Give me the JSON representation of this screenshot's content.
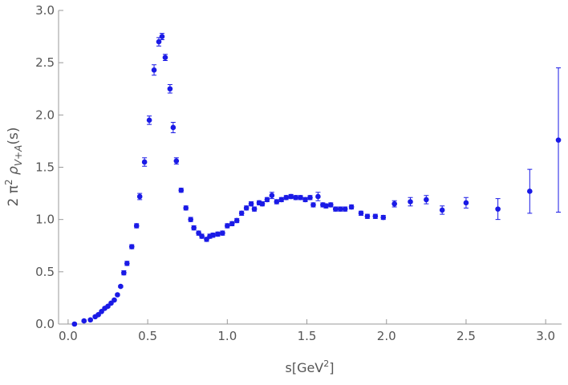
{
  "chart_data": {
    "type": "scatter",
    "xlabel": [
      "s[GeV",
      "2",
      "]"
    ],
    "ylabel": [
      "2 π",
      "2",
      " ρ",
      "V+A",
      "(s)"
    ],
    "xlim": [
      -0.06,
      3.1
    ],
    "ylim": [
      0,
      3.0
    ],
    "xticks": [
      {
        "value": 0,
        "label": "0.0"
      },
      0.5,
      {
        "value": 1,
        "label": "1.0"
      },
      1.5,
      {
        "value": 2,
        "label": "2.0"
      },
      2.5,
      {
        "value": 3,
        "label": "3.0"
      }
    ],
    "yticks": [
      {
        "value": 0,
        "label": "0.0"
      },
      0.5,
      {
        "value": 1,
        "label": "1.0"
      },
      1.5,
      {
        "value": 2,
        "label": "2.0"
      },
      2.5,
      {
        "value": 3,
        "label": "3.0"
      }
    ],
    "color": "#1a1ae6",
    "x": [
      0.04,
      0.1,
      0.14,
      0.17,
      0.19,
      0.21,
      0.23,
      0.25,
      0.27,
      0.29,
      0.31,
      0.33,
      0.35,
      0.37,
      0.4,
      0.43,
      0.45,
      0.48,
      0.51,
      0.54,
      0.57,
      0.59,
      0.61,
      0.64,
      0.66,
      0.68,
      0.71,
      0.74,
      0.77,
      0.79,
      0.82,
      0.84,
      0.87,
      0.89,
      0.91,
      0.94,
      0.97,
      1.0,
      1.03,
      1.06,
      1.09,
      1.12,
      1.15,
      1.17,
      1.2,
      1.22,
      1.25,
      1.28,
      1.31,
      1.34,
      1.37,
      1.4,
      1.43,
      1.46,
      1.49,
      1.52,
      1.54,
      1.57,
      1.6,
      1.62,
      1.65,
      1.68,
      1.71,
      1.74,
      1.78,
      1.84,
      1.88,
      1.93,
      1.98,
      2.05,
      2.15,
      2.25,
      2.35,
      2.5,
      2.7,
      2.9,
      3.08
    ],
    "values": [
      0.0,
      0.03,
      0.04,
      0.07,
      0.09,
      0.12,
      0.15,
      0.17,
      0.2,
      0.23,
      0.28,
      0.36,
      0.49,
      0.58,
      0.74,
      0.94,
      1.22,
      1.55,
      1.95,
      2.43,
      2.7,
      2.75,
      2.55,
      2.25,
      1.88,
      1.56,
      1.28,
      1.11,
      1.0,
      0.92,
      0.87,
      0.84,
      0.81,
      0.84,
      0.85,
      0.86,
      0.87,
      0.94,
      0.96,
      0.99,
      1.06,
      1.11,
      1.15,
      1.1,
      1.16,
      1.15,
      1.19,
      1.23,
      1.17,
      1.19,
      1.21,
      1.22,
      1.21,
      1.21,
      1.19,
      1.21,
      1.14,
      1.22,
      1.14,
      1.13,
      1.14,
      1.1,
      1.1,
      1.1,
      1.12,
      1.06,
      1.03,
      1.03,
      1.02,
      1.15,
      1.17,
      1.19,
      1.09,
      1.16,
      1.1,
      1.27,
      1.76
    ],
    "errors": [
      0.01,
      0.01,
      0.01,
      0.01,
      0.01,
      0.01,
      0.01,
      0.01,
      0.01,
      0.01,
      0.01,
      0.01,
      0.02,
      0.02,
      0.02,
      0.02,
      0.03,
      0.04,
      0.04,
      0.05,
      0.04,
      0.03,
      0.03,
      0.04,
      0.05,
      0.03,
      0.02,
      0.02,
      0.02,
      0.02,
      0.02,
      0.02,
      0.02,
      0.02,
      0.02,
      0.02,
      0.02,
      0.02,
      0.02,
      0.02,
      0.02,
      0.02,
      0.02,
      0.02,
      0.02,
      0.02,
      0.02,
      0.03,
      0.02,
      0.02,
      0.02,
      0.02,
      0.02,
      0.02,
      0.02,
      0.02,
      0.02,
      0.04,
      0.02,
      0.02,
      0.02,
      0.02,
      0.02,
      0.02,
      0.02,
      0.02,
      0.02,
      0.02,
      0.02,
      0.03,
      0.04,
      0.04,
      0.04,
      0.05,
      0.1,
      0.21,
      0.69
    ]
  }
}
